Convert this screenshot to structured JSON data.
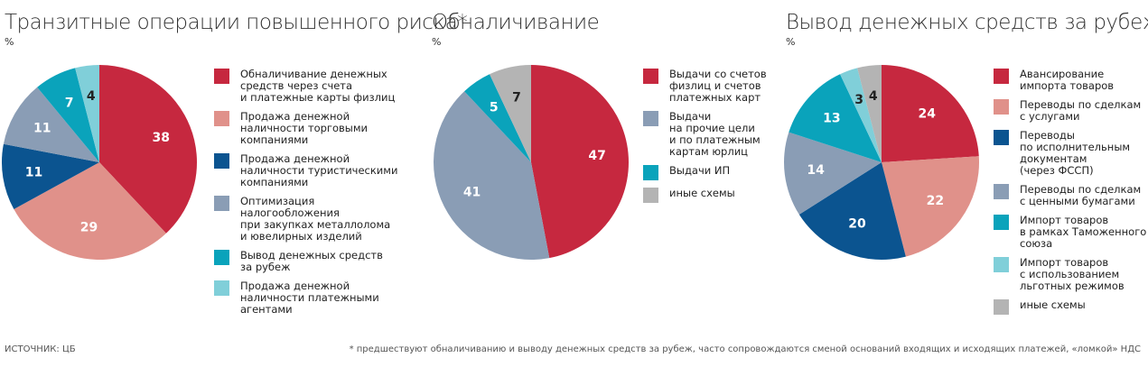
{
  "chart_data": [
    {
      "type": "pie",
      "title": "Транзитные операции повышенного риска*",
      "subtitle": "%",
      "categories": [
        "Обналичивание денежных\nсредств через счета\nи платежные карты физлиц",
        "Продажа денежной\nналичности торговыми\nкомпаниями",
        "Продажа денежной\nналичности туристическими\nкомпаниями",
        "Оптимизация\nналогообложения\nпри закупках металлолома\nи ювелирных изделий",
        "Вывод денежных средств\nза рубеж",
        "Продажа денежной\nналичности платежными\nагентами"
      ],
      "values": [
        38,
        29,
        11,
        11,
        7,
        4
      ],
      "colors": [
        "#c6283f",
        "#e0918a",
        "#0b5490",
        "#8a9db5",
        "#0aa3bb",
        "#80cfd9"
      ]
    },
    {
      "type": "pie",
      "title": "Обналичивание",
      "subtitle": "%",
      "categories": [
        "Выдачи со счетов\nфизлиц и счетов\nплатежных карт",
        "Выдачи\nна прочие цели\nи по платежным\nкартам юрлиц",
        "Выдачи ИП",
        "иные схемы"
      ],
      "values": [
        47,
        41,
        5,
        7
      ],
      "colors": [
        "#c6283f",
        "#8a9db5",
        "#0aa3bb",
        "#b4b4b4"
      ]
    },
    {
      "type": "pie",
      "title": "Вывод денежных средств за рубеж",
      "subtitle": "%",
      "categories": [
        "Авансирование\nимпорта товаров",
        "Переводы по сделкам\nс услугами",
        "Переводы\nпо исполнительным\nдокументам\n(через ФССП)",
        "Переводы по сделкам\nс ценными бумагами",
        "Импорт товаров\nв рамках Таможенного\nсоюза",
        "Импорт товаров\nс использованием\nльготных режимов",
        "иные схемы"
      ],
      "values": [
        24,
        22,
        20,
        14,
        13,
        3,
        4
      ],
      "colors": [
        "#c6283f",
        "#e0918a",
        "#0b5490",
        "#8a9db5",
        "#0aa3bb",
        "#80cfd9",
        "#b4b4b4"
      ]
    }
  ],
  "source": "ИСТОЧНИК: ЦБ",
  "footnote": "* предшествуют обналичиванию и выводу денежных средств за рубеж, часто сопровождаются сменой оснований входящих и исходящих платежей, «ломкой» НДС"
}
